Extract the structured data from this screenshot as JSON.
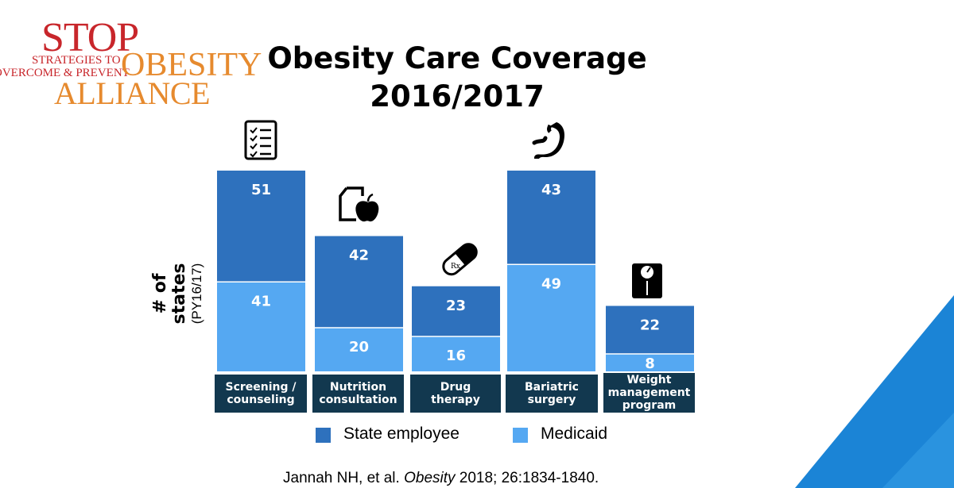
{
  "logo": {
    "stop": "STOP",
    "strategies_line1": "STRATEGIES TO",
    "strategies_line2": "OVERCOME & PREVENT",
    "obesity": "OBESITY",
    "alliance": "ALLIANCE"
  },
  "title": {
    "line1": "Obesity Care Coverage",
    "line2": "2016/2017"
  },
  "legend": [
    {
      "label": "State employee",
      "color": "#2e71bd"
    },
    {
      "label": "Medicaid",
      "color": "#55a8f2"
    }
  ],
  "categories": [
    {
      "line1": "Screening /",
      "line2": "counseling",
      "line3": "",
      "icon": "checklist-icon"
    },
    {
      "line1": "Nutrition",
      "line2": "consultation",
      "line3": "",
      "icon": "apple-document-icon"
    },
    {
      "line1": "Drug",
      "line2": "therapy",
      "line3": "",
      "icon": "pill-icon"
    },
    {
      "line1": "Bariatric",
      "line2": "surgery",
      "line3": "",
      "icon": "stomach-icon"
    },
    {
      "line1": "Weight",
      "line2": "management",
      "line3": "program",
      "icon": "scale-icon"
    }
  ],
  "citation": {
    "authors": "Jannah NH, et al. ",
    "journal": "Obesity",
    "details": " 2018; 26:1834-1840."
  },
  "chart_data": {
    "type": "bar",
    "stacked": true,
    "categories": [
      "Screening / counseling",
      "Nutrition consultation",
      "Drug therapy",
      "Bariatric surgery",
      "Weight management program"
    ],
    "series": [
      {
        "name": "Medicaid",
        "values": [
          41,
          20,
          16,
          49,
          8
        ]
      },
      {
        "name": "State employee",
        "values": [
          51,
          42,
          23,
          43,
          22
        ]
      }
    ],
    "title": "Obesity Care Coverage 2016/2017",
    "ylabel": "# of states",
    "ylabel_sub": "(PY16/17)",
    "xlabel": "",
    "ylim": [
      0,
      92
    ],
    "legend": "bottom",
    "colors": {
      "State employee": "#2e71bd",
      "Medicaid": "#55a8f2"
    }
  }
}
